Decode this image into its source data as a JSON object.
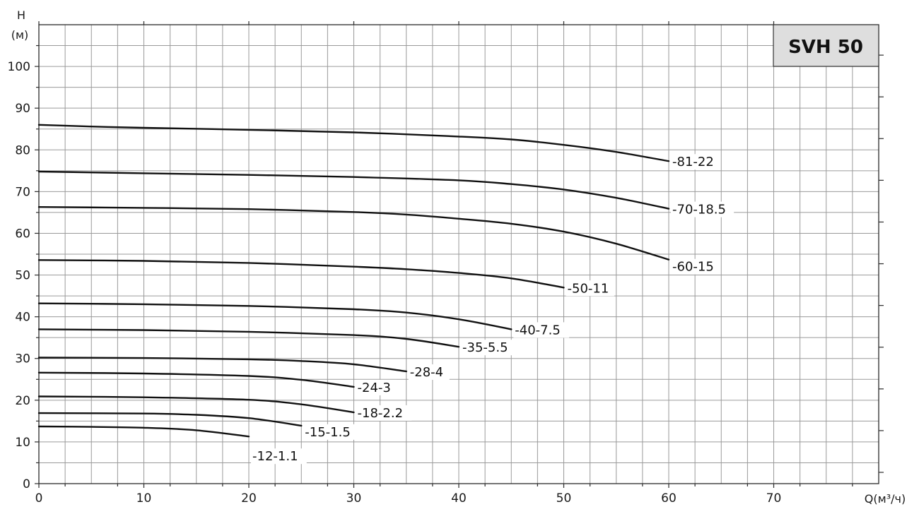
{
  "chart_data": {
    "type": "line",
    "title": "SVH 50",
    "xlabel": "Q(м³/ч)",
    "ylabel_line1": "H",
    "ylabel_line2": "(м)",
    "xlim": [
      0,
      80
    ],
    "ylim": [
      0,
      110
    ],
    "x_ticks": [
      0,
      10,
      20,
      30,
      40,
      50,
      60,
      70
    ],
    "y_ticks": [
      0,
      10,
      20,
      30,
      40,
      50,
      60,
      70,
      80,
      90,
      100
    ],
    "grid": true,
    "series": [
      {
        "name": "-81-22",
        "x": [
          0,
          5,
          10,
          20,
          30,
          40,
          45,
          50,
          55,
          60
        ],
        "y": [
          86,
          85.6,
          85.3,
          84.8,
          84.2,
          83.2,
          82.5,
          81.2,
          79.5,
          77.3
        ]
      },
      {
        "name": "-70-18.5",
        "x": [
          0,
          10,
          20,
          30,
          40,
          45,
          50,
          55,
          60
        ],
        "y": [
          74.8,
          74.4,
          74,
          73.5,
          72.7,
          71.8,
          70.5,
          68.5,
          65.9
        ]
      },
      {
        "name": "-60-15",
        "x": [
          0,
          10,
          20,
          30,
          35,
          40,
          45,
          50,
          55,
          60
        ],
        "y": [
          66.3,
          66.1,
          65.8,
          65.1,
          64.5,
          63.5,
          62.3,
          60.4,
          57.5,
          53.7
        ]
      },
      {
        "name": "-50-11",
        "x": [
          0,
          10,
          20,
          30,
          35,
          40,
          45,
          50
        ],
        "y": [
          53.6,
          53.4,
          52.9,
          52,
          51.4,
          50.5,
          49.2,
          47
        ]
      },
      {
        "name": "-40-7.5",
        "x": [
          0,
          10,
          20,
          30,
          35,
          40,
          45
        ],
        "y": [
          43.2,
          43,
          42.6,
          41.8,
          41,
          39.4,
          37
        ]
      },
      {
        "name": "-35-5.5",
        "x": [
          0,
          10,
          20,
          30,
          35,
          40
        ],
        "y": [
          37,
          36.8,
          36.4,
          35.6,
          34.7,
          32.8
        ]
      },
      {
        "name": "-28-4",
        "x": [
          0,
          10,
          20,
          25,
          30,
          35
        ],
        "y": [
          30.2,
          30.1,
          29.8,
          29.4,
          28.6,
          26.9
        ]
      },
      {
        "name": "-24-3",
        "x": [
          0,
          10,
          20,
          25,
          30
        ],
        "y": [
          26.6,
          26.4,
          25.8,
          24.9,
          23.2
        ]
      },
      {
        "name": "-18-2.2",
        "x": [
          0,
          10,
          20,
          25,
          30
        ],
        "y": [
          20.9,
          20.7,
          20.1,
          19,
          17.1
        ]
      },
      {
        "name": "-15-1.5",
        "x": [
          0,
          10,
          15,
          20,
          25
        ],
        "y": [
          16.9,
          16.8,
          16.5,
          15.7,
          13.9
        ]
      },
      {
        "name": "-12-1.1",
        "x": [
          0,
          5,
          10,
          15,
          20
        ],
        "y": [
          13.7,
          13.6,
          13.4,
          12.8,
          11.3
        ]
      }
    ]
  }
}
